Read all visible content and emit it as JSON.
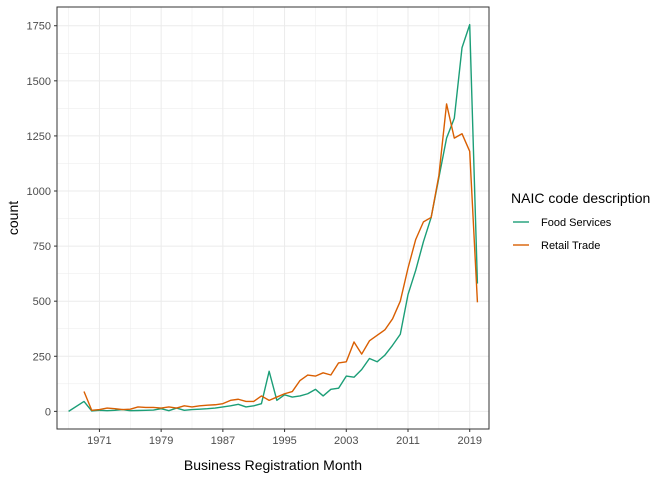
{
  "chart_data": {
    "type": "line",
    "xlabel": "Business Registration Month",
    "ylabel": "count",
    "xlim": [
      1965.5,
      2021.5
    ],
    "ylim": [
      -80,
      1835
    ],
    "x_ticks": [
      1971,
      1979,
      1987,
      1995,
      2003,
      2011,
      2019
    ],
    "y_ticks": [
      0,
      250,
      500,
      750,
      1000,
      1250,
      1500,
      1750
    ],
    "grid": true,
    "legend": {
      "title": "NAIC code description",
      "position": "right"
    },
    "series": [
      {
        "name": "Food Services",
        "color": "#1b9e77",
        "x": [
          1967,
          1969,
          1970,
          1971,
          1972,
          1973,
          1974,
          1975,
          1976,
          1977,
          1978,
          1979,
          1980,
          1981,
          1982,
          1983,
          1984,
          1985,
          1986,
          1987,
          1988,
          1989,
          1990,
          1991,
          1992,
          1993,
          1994,
          1995,
          1996,
          1997,
          1998,
          1999,
          2000,
          2001,
          2002,
          2003,
          2004,
          2005,
          2006,
          2007,
          2008,
          2009,
          2010,
          2011,
          2012,
          2013,
          2014,
          2015,
          2016,
          2017,
          2018,
          2019,
          2020
        ],
        "y": [
          0,
          45,
          2,
          5,
          3,
          5,
          8,
          3,
          4,
          5,
          6,
          12,
          3,
          15,
          5,
          8,
          10,
          12,
          15,
          20,
          25,
          32,
          20,
          25,
          35,
          182,
          50,
          75,
          65,
          70,
          80,
          100,
          70,
          100,
          105,
          160,
          155,
          190,
          240,
          225,
          255,
          300,
          350,
          530,
          640,
          770,
          880,
          1060,
          1240,
          1330,
          1650,
          1755,
          580
        ]
      },
      {
        "name": "Retail Trade",
        "color": "#d95f02",
        "x": [
          1969,
          1970,
          1971,
          1972,
          1973,
          1974,
          1975,
          1976,
          1977,
          1978,
          1979,
          1980,
          1981,
          1982,
          1983,
          1984,
          1985,
          1986,
          1987,
          1988,
          1989,
          1990,
          1991,
          1992,
          1993,
          1994,
          1995,
          1996,
          1997,
          1998,
          1999,
          2000,
          2001,
          2002,
          2003,
          2004,
          2005,
          2006,
          2007,
          2008,
          2009,
          2010,
          2011,
          2012,
          2013,
          2014,
          2015,
          2016,
          2017,
          2018,
          2019,
          2020
        ],
        "y": [
          90,
          5,
          8,
          15,
          12,
          8,
          10,
          20,
          18,
          18,
          15,
          20,
          15,
          25,
          20,
          25,
          28,
          30,
          35,
          50,
          55,
          45,
          45,
          70,
          50,
          65,
          80,
          90,
          140,
          165,
          160,
          175,
          165,
          220,
          225,
          315,
          260,
          320,
          345,
          370,
          420,
          500,
          650,
          780,
          860,
          880,
          1070,
          1395,
          1240,
          1260,
          1180,
          495
        ]
      }
    ]
  }
}
